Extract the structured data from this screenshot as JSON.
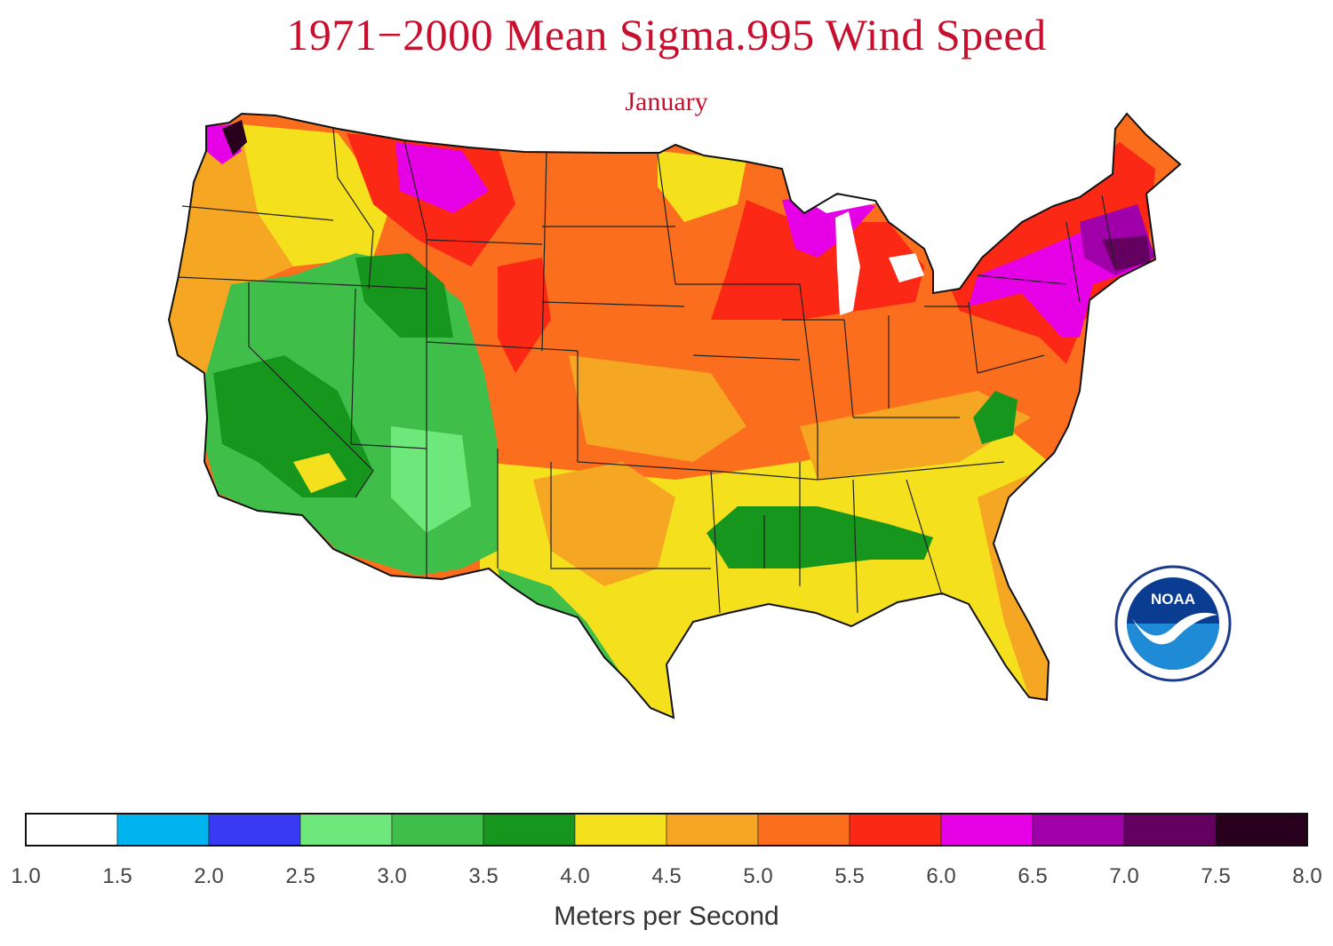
{
  "title": "1971−2000 Mean Sigma.995 Wind Speed",
  "subtitle": "January",
  "logo": {
    "text": "NOAA",
    "icon": "noaa-logo-icon"
  },
  "legend": {
    "unit": "Meters per Second",
    "ticks": [
      "1.0",
      "1.5",
      "2.0",
      "2.5",
      "3.0",
      "3.5",
      "4.0",
      "4.5",
      "5.0",
      "5.5",
      "6.0",
      "6.5",
      "7.0",
      "7.5",
      "8.0"
    ],
    "colors": [
      "#ffffff",
      "#00b4f0",
      "#3a3af5",
      "#6ee87a",
      "#3fbf4a",
      "#16961c",
      "#f5e01e",
      "#f5a623",
      "#fa6e1e",
      "#fa2814",
      "#e600e6",
      "#a000aa",
      "#64005f",
      "#28001e"
    ]
  },
  "chart_data": {
    "type": "heatmap",
    "title": "1971−2000 Mean Sigma.995 Wind Speed",
    "subtitle": "January",
    "region": "Contiguous United States",
    "colorbar_label": "Meters per Second",
    "colorbar_range": [
      1.0,
      8.0
    ],
    "colorbar_bins": [
      [
        1.0,
        1.5
      ],
      [
        1.5,
        2.0
      ],
      [
        2.0,
        2.5
      ],
      [
        2.5,
        3.0
      ],
      [
        3.0,
        3.5
      ],
      [
        3.5,
        4.0
      ],
      [
        4.0,
        4.5
      ],
      [
        4.5,
        5.0
      ],
      [
        5.0,
        5.5
      ],
      [
        5.5,
        6.0
      ],
      [
        6.0,
        6.5
      ],
      [
        6.5,
        7.0
      ],
      [
        7.0,
        7.5
      ],
      [
        7.5,
        8.0
      ]
    ]
  }
}
